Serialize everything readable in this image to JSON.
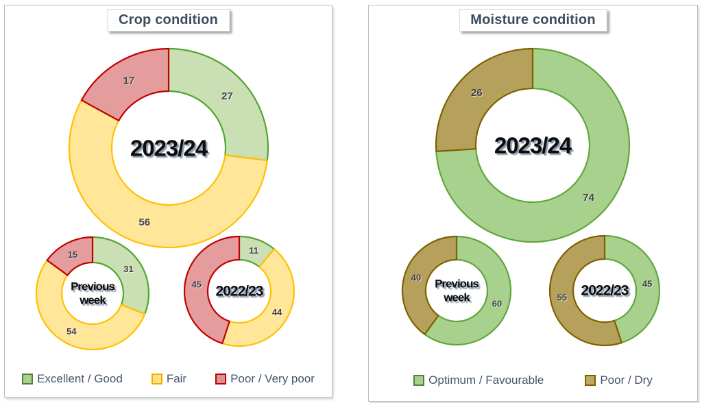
{
  "chart_data": [
    {
      "type": "donut",
      "title": "Crop condition",
      "legend_position": "bottom",
      "categories": [
        "Excellent / Good",
        "Fair",
        "Poor / Very poor"
      ],
      "category_colors": [
        {
          "fill": "#CBDFB5",
          "stroke": "#4EA72E",
          "legend_fill": "#A9D08E",
          "legend_stroke": "#538135"
        },
        {
          "fill": "#FFE699",
          "stroke": "#FFC000",
          "legend_fill": "#FFE187",
          "legend_stroke": "#EBB000"
        },
        {
          "fill": "#E59C9C",
          "stroke": "#C00000",
          "legend_fill": "#DB9292",
          "legend_stroke": "#C00000"
        }
      ],
      "rings": [
        {
          "label": "2023/24",
          "values": [
            27,
            56,
            17
          ]
        },
        {
          "label": "Previous week",
          "values": [
            31,
            54,
            15
          ]
        },
        {
          "label": "2022/23",
          "values": [
            11,
            44,
            45
          ]
        }
      ],
      "value_label_color": "#3F3F4C",
      "legend_text_color": "#44546A",
      "title_color": "#3F4C60"
    },
    {
      "type": "donut",
      "title": "Moisture condition",
      "legend_position": "bottom",
      "categories": [
        "Optimum / Favourable",
        "Poor / Dry"
      ],
      "category_colors": [
        {
          "fill": "#A9D18E",
          "stroke": "#5FA63C",
          "legend_fill": "#A9D08E",
          "legend_stroke": "#538135"
        },
        {
          "fill": "#B5A05C",
          "stroke": "#7F6000",
          "legend_fill": "#BFA861",
          "legend_stroke": "#7F6000"
        }
      ],
      "rings": [
        {
          "label": "2023/24",
          "values": [
            74,
            26
          ]
        },
        {
          "label": "Previous week",
          "values": [
            60,
            40
          ]
        },
        {
          "label": "2022/23",
          "values": [
            45,
            55
          ]
        }
      ],
      "value_label_color": "#3F3F4C",
      "legend_text_color": "#44546A",
      "title_color": "#3F4C60"
    }
  ]
}
